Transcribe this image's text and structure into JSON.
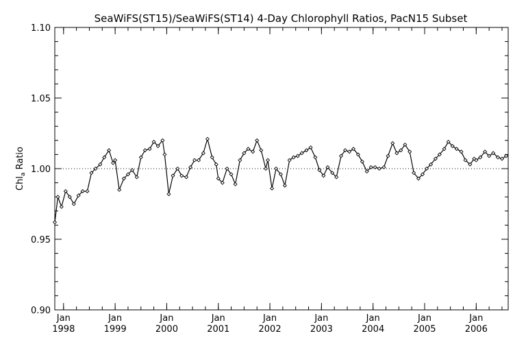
{
  "chart_data": {
    "type": "line",
    "title": "SeaWiFS(ST15)/SeaWiFS(ST14) 4-Day Chlorophyll Ratios, PacN15 Subset",
    "ylabel_main": "Chl",
    "ylabel_sub": "a",
    "ylabel_rest": " Ratio",
    "xlabel": "",
    "ylim": [
      0.9,
      1.1
    ],
    "xlim": [
      1997.83,
      2006.62
    ],
    "yticks": [
      {
        "value": 0.9,
        "label": "0.90"
      },
      {
        "value": 0.95,
        "label": "0.95"
      },
      {
        "value": 1.0,
        "label": "1.00"
      },
      {
        "value": 1.05,
        "label": "1.05"
      },
      {
        "value": 1.1,
        "label": "1.10"
      }
    ],
    "xticks": [
      {
        "value": 1998.0,
        "month": "Jan",
        "year": "1998"
      },
      {
        "value": 1999.0,
        "month": "Jan",
        "year": "1999"
      },
      {
        "value": 2000.0,
        "month": "Jan",
        "year": "2000"
      },
      {
        "value": 2001.0,
        "month": "Jan",
        "year": "2001"
      },
      {
        "value": 2002.0,
        "month": "Jan",
        "year": "2002"
      },
      {
        "value": 2003.0,
        "month": "Jan",
        "year": "2003"
      },
      {
        "value": 2004.0,
        "month": "Jan",
        "year": "2004"
      },
      {
        "value": 2005.0,
        "month": "Jan",
        "year": "2005"
      },
      {
        "value": 2006.0,
        "month": "Jan",
        "year": "2006"
      }
    ],
    "reference_line": 1.0,
    "grid": false,
    "series": [
      {
        "x": [
          1997.83,
          1997.89,
          1997.96,
          1998.04,
          1998.12,
          1998.2,
          1998.29,
          1998.37,
          1998.46,
          1998.54,
          1998.62,
          1998.71,
          1998.79,
          1998.88,
          1998.96,
          1999.0,
          1999.08,
          1999.17,
          1999.25,
          1999.33,
          1999.42,
          1999.5,
          1999.58,
          1999.67,
          1999.75,
          1999.83,
          1999.92,
          1999.96,
          2000.04,
          2000.12,
          2000.21,
          2000.29,
          2000.38,
          2000.46,
          2000.54,
          2000.62,
          2000.71,
          2000.79,
          2000.88,
          2000.96,
          2001.0,
          2001.08,
          2001.17,
          2001.25,
          2001.33,
          2001.42,
          2001.5,
          2001.58,
          2001.67,
          2001.75,
          2001.83,
          2001.92,
          2001.96,
          2002.04,
          2002.12,
          2002.21,
          2002.29,
          2002.38,
          2002.46,
          2002.54,
          2002.62,
          2002.71,
          2002.79,
          2002.88,
          2002.96,
          2003.04,
          2003.12,
          2003.21,
          2003.29,
          2003.38,
          2003.46,
          2003.54,
          2003.62,
          2003.71,
          2003.79,
          2003.88,
          2003.96,
          2004.04,
          2004.12,
          2004.21,
          2004.29,
          2004.38,
          2004.46,
          2004.54,
          2004.62,
          2004.71,
          2004.79,
          2004.88,
          2004.96,
          2005.04,
          2005.12,
          2005.21,
          2005.29,
          2005.38,
          2005.46,
          2005.54,
          2005.62,
          2005.71,
          2005.79,
          2005.88,
          2005.96,
          2006.0,
          2006.08,
          2006.17,
          2006.25,
          2006.33,
          2006.42,
          2006.5,
          2006.58
        ],
        "values": [
          0.962,
          0.98,
          0.973,
          0.984,
          0.98,
          0.975,
          0.981,
          0.984,
          0.984,
          0.997,
          1.0,
          1.003,
          1.008,
          1.013,
          1.004,
          1.006,
          0.985,
          0.993,
          0.996,
          0.999,
          0.994,
          1.008,
          1.013,
          1.014,
          1.019,
          1.016,
          1.02,
          1.01,
          0.982,
          0.995,
          1.0,
          0.995,
          0.994,
          1.001,
          1.006,
          1.006,
          1.011,
          1.021,
          1.008,
          1.003,
          0.993,
          0.99,
          1.0,
          0.996,
          0.989,
          1.006,
          1.011,
          1.014,
          1.012,
          1.02,
          1.013,
          1.0,
          1.006,
          0.986,
          1.0,
          0.996,
          0.988,
          1.006,
          1.008,
          1.009,
          1.011,
          1.013,
          1.015,
          1.008,
          0.999,
          0.995,
          1.001,
          0.997,
          0.994,
          1.009,
          1.013,
          1.012,
          1.014,
          1.01,
          1.005,
          0.998,
          1.001,
          1.001,
          1.0,
          1.001,
          1.009,
          1.018,
          1.011,
          1.013,
          1.017,
          1.012,
          0.997,
          0.993,
          0.996,
          1.0,
          1.003,
          1.007,
          1.01,
          1.014,
          1.019,
          1.016,
          1.014,
          1.012,
          1.006,
          1.003,
          1.007,
          1.006,
          1.008,
          1.012,
          1.009,
          1.011,
          1.008,
          1.007,
          1.009
        ]
      }
    ]
  }
}
